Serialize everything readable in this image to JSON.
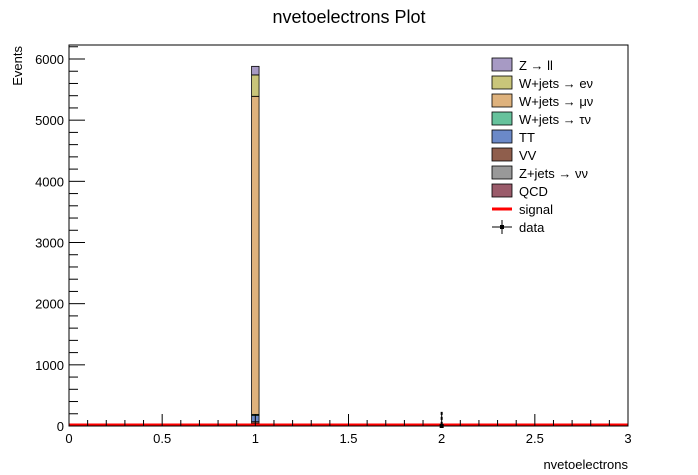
{
  "chart_data": {
    "type": "bar",
    "title": "nvetoelectrons Plot",
    "xlabel": "nvetoelectrons",
    "ylabel": "Events",
    "xlim": [
      0,
      3
    ],
    "ylim": [
      0,
      6200
    ],
    "x_ticks": [
      "0",
      "0.5",
      "1",
      "1.5",
      "2",
      "2.5",
      "3"
    ],
    "y_ticks": [
      "0",
      "1000",
      "2000",
      "3000",
      "4000",
      "5000",
      "6000"
    ],
    "bin_edges": [
      0.98,
      1.02
    ],
    "stack": [
      {
        "name": "QCD",
        "color": "#9a5b6a",
        "values": [
          10
        ]
      },
      {
        "name": "Z+jets → νν",
        "color": "#999999",
        "values": [
          30
        ]
      },
      {
        "name": "VV",
        "color": "#8f5e4c",
        "values": [
          30
        ]
      },
      {
        "name": "TT",
        "color": "#6b89c8",
        "values": [
          100
        ]
      },
      {
        "name": "W+jets → τν",
        "color": "#66c29c",
        "values": [
          20
        ]
      },
      {
        "name": "W+jets → μν",
        "color": "#deb27d",
        "values": [
          5200
        ]
      },
      {
        "name": "W+jets → eν",
        "color": "#c9c57a",
        "values": [
          350
        ]
      },
      {
        "name": "Z → ll",
        "color": "#a79ac4",
        "values": [
          140
        ]
      }
    ],
    "signal": {
      "name": "signal",
      "color": "#ff0000",
      "value": 0
    },
    "data": {
      "name": "data",
      "x": 2,
      "y": 0,
      "err": 230
    },
    "legend": {
      "placement": "top-right",
      "entries": [
        {
          "label": "Z → ll",
          "color": "#a79ac4",
          "kind": "box"
        },
        {
          "label": "W+jets → eν",
          "color": "#c9c57a",
          "kind": "box"
        },
        {
          "label": "W+jets → μν",
          "color": "#deb27d",
          "kind": "box"
        },
        {
          "label": "W+jets → τν",
          "color": "#66c29c",
          "kind": "box"
        },
        {
          "label": "TT",
          "color": "#6b89c8",
          "kind": "box"
        },
        {
          "label": "VV",
          "color": "#8f5e4c",
          "kind": "box"
        },
        {
          "label": "Z+jets → νν",
          "color": "#999999",
          "kind": "box"
        },
        {
          "label": "QCD",
          "color": "#9a5b6a",
          "kind": "box"
        },
        {
          "label": "signal",
          "color": "#ff0000",
          "kind": "line"
        },
        {
          "label": "data",
          "color": "#000000",
          "kind": "marker"
        }
      ]
    },
    "grid": false
  }
}
